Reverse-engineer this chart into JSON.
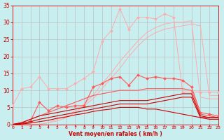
{
  "background_color": "#c8eef0",
  "grid_color": "#b0b0b0",
  "xlabel": "Vent moyen/en rafales ( km/h )",
  "xlim": [
    0,
    23
  ],
  "ylim": [
    0,
    35
  ],
  "tick_color": "#cc0000",
  "label_color": "#cc0000",
  "s1_color": "#ffaaaa",
  "s2_color": "#ffaaaa",
  "s3_color": "#ffaaaa",
  "s4_color": "#ff5555",
  "s5_color": "#ff5555",
  "s6_color": "#cc0000",
  "s7_color": "#cc0000",
  "s8_color": "#cc0000",
  "x": [
    0,
    1,
    2,
    3,
    4,
    5,
    6,
    7,
    8,
    9,
    10,
    11,
    12,
    13,
    14,
    15,
    16,
    17,
    18,
    19,
    20,
    21,
    22,
    23
  ],
  "s1_y": [
    5.5,
    10.5,
    11.0,
    14.0,
    10.5,
    10.5,
    10.5,
    12.0,
    13.5,
    15.5,
    24.5,
    27.5,
    34.0,
    28.0,
    31.5,
    31.5,
    31.0,
    32.5,
    31.5,
    9.5,
    9.5,
    9.5,
    9.5,
    9.5
  ],
  "s2_y": [
    0,
    0,
    0,
    0,
    0.5,
    1.5,
    2.5,
    4.0,
    6.0,
    8.5,
    12.0,
    15.0,
    18.5,
    21.5,
    24.5,
    27.0,
    28.5,
    29.5,
    30.0,
    30.0,
    30.5,
    8.0,
    7.5,
    7.5
  ],
  "s3_y": [
    0,
    0,
    0,
    0,
    0.5,
    1.0,
    2.0,
    3.5,
    5.5,
    7.5,
    10.5,
    13.5,
    16.5,
    20.0,
    23.0,
    25.5,
    27.0,
    28.0,
    28.5,
    29.0,
    29.5,
    29.0,
    8.5,
    8.5
  ],
  "s4_y": [
    0,
    0,
    1.0,
    6.5,
    4.0,
    5.5,
    5.0,
    5.5,
    5.5,
    11.0,
    12.0,
    13.5,
    14.0,
    11.5,
    14.5,
    13.5,
    14.0,
    13.5,
    13.5,
    13.0,
    11.0,
    3.5,
    3.0,
    2.5
  ],
  "s5_y": [
    0,
    0.5,
    1.5,
    2.5,
    3.5,
    4.5,
    5.5,
    6.5,
    7.5,
    8.5,
    9.0,
    9.5,
    10.0,
    10.0,
    10.0,
    10.5,
    10.5,
    10.5,
    10.5,
    10.5,
    10.0,
    3.0,
    2.5,
    2.0
  ],
  "s6_y": [
    0,
    0.5,
    1.5,
    2.5,
    3.0,
    3.5,
    4.0,
    4.5,
    5.0,
    5.5,
    6.0,
    6.5,
    7.0,
    7.0,
    7.0,
    7.0,
    7.5,
    8.0,
    8.5,
    9.0,
    9.0,
    2.5,
    2.0,
    2.0
  ],
  "s7_y": [
    0,
    0.3,
    0.8,
    1.5,
    2.0,
    2.5,
    3.0,
    3.5,
    4.0,
    4.5,
    5.0,
    5.5,
    6.0,
    6.0,
    6.0,
    6.0,
    6.5,
    7.0,
    7.5,
    8.0,
    8.0,
    2.0,
    1.5,
    1.5
  ],
  "s8_y": [
    0,
    0.1,
    0.4,
    0.8,
    1.2,
    1.8,
    2.2,
    2.8,
    3.2,
    3.8,
    4.2,
    4.5,
    5.0,
    5.0,
    5.0,
    4.5,
    4.5,
    4.0,
    3.5,
    3.0,
    2.5,
    2.0,
    2.0,
    2.0
  ]
}
